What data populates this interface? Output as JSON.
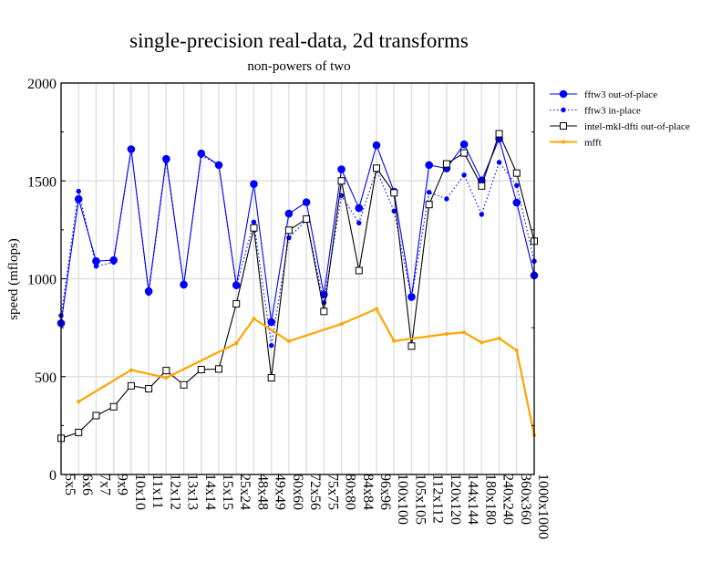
{
  "chart_data": {
    "type": "line",
    "title": "single-precision real-data, 2d transforms",
    "subtitle": "non-powers of two",
    "xlabel": "",
    "ylabel": "speed (mflops)",
    "ylim": [
      0,
      2000
    ],
    "yticks": [
      "0",
      "500",
      "1000",
      "1500",
      "2000"
    ],
    "grid": true,
    "legend_position": "right, outside top",
    "categories": [
      "5x5",
      "6x6",
      "7x7",
      "9x9",
      "10x10",
      "11x11",
      "12x12",
      "13x13",
      "14x14",
      "15x15",
      "25x24",
      "48x48",
      "49x49",
      "60x60",
      "72x56",
      "75x75",
      "80x80",
      "84x84",
      "96x96",
      "100x100",
      "105x105",
      "112x112",
      "120x120",
      "144x144",
      "180x180",
      "240x240",
      "360x360",
      "1000x1000"
    ],
    "series": [
      {
        "name": "fftw3 out-of-place",
        "color": "#0000ff",
        "style": "solid-large-dot",
        "values": [
          773,
          1407,
          1090,
          1095,
          1662,
          936,
          1612,
          970,
          1640,
          1581,
          967,
          1484,
          779,
          1333,
          1391,
          919,
          1559,
          1361,
          1682,
          1445,
          907,
          1581,
          1564,
          1687,
          1502,
          1715,
          1389,
          1017
        ]
      },
      {
        "name": "fftw3 in-place",
        "color": "#0000ff",
        "style": "dotted-small-dot",
        "values": [
          812,
          1447,
          1064,
          1084,
          1662,
          925,
          1600,
          970,
          1630,
          1581,
          960,
          1290,
          659,
          1209,
          1300,
          878,
          1425,
          1285,
          1556,
          1346,
          900,
          1442,
          1408,
          1530,
          1329,
          1595,
          1477,
          1090
        ]
      },
      {
        "name": "intel-mkl-dfti out-of-place",
        "color": "#000000",
        "style": "solid-square",
        "values": [
          185,
          215,
          301,
          346,
          453,
          438,
          531,
          458,
          536,
          539,
          872,
          1260,
          494,
          1248,
          1305,
          833,
          1500,
          1042,
          1565,
          1439,
          656,
          1379,
          1587,
          1643,
          1474,
          1741,
          1540,
          1192
        ]
      },
      {
        "name": "mfft",
        "color": "#ffa500",
        "style": "solid-small-dot",
        "values": [
          null,
          372,
          null,
          null,
          534,
          null,
          494,
          null,
          null,
          null,
          670,
          796,
          null,
          681,
          null,
          null,
          769,
          null,
          846,
          682,
          null,
          null,
          718,
          726,
          674,
          696,
          634,
          201
        ]
      }
    ]
  }
}
